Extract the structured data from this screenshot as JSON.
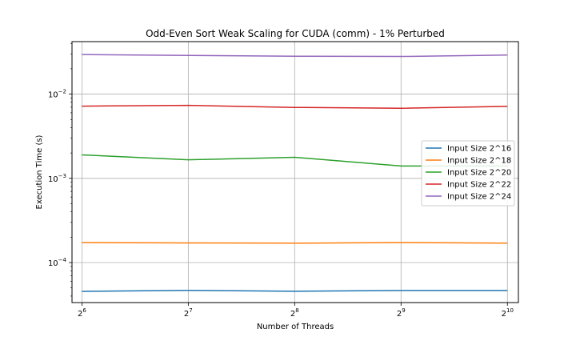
{
  "chart_data": {
    "type": "line",
    "title": "Odd-Even Sort Weak Scaling for CUDA (comm) - 1% Perturbed",
    "xlabel": "Number of Threads",
    "ylabel": "Execution Time (s)",
    "x_scale": "log2",
    "y_scale": "log10",
    "x": [
      64,
      128,
      256,
      512,
      1024
    ],
    "x_tick_labels": [
      {
        "base": "2",
        "exp": "6"
      },
      {
        "base": "2",
        "exp": "7"
      },
      {
        "base": "2",
        "exp": "8"
      },
      {
        "base": "2",
        "exp": "9"
      },
      {
        "base": "2",
        "exp": "10"
      }
    ],
    "y_tick_labels": [
      {
        "value": 0.0001,
        "base": "10",
        "exp": "−4"
      },
      {
        "value": 0.001,
        "base": "10",
        "exp": "−3"
      },
      {
        "value": 0.01,
        "base": "10",
        "exp": "−2"
      }
    ],
    "xlim": [
      60,
      1100
    ],
    "ylim": [
      3.35e-05,
      0.042
    ],
    "grid": true,
    "legend_position": "center-right",
    "series": [
      {
        "name": "Input Size 2^16",
        "color": "#1f77b4",
        "values": [
          4.55e-05,
          4.68e-05,
          4.56e-05,
          4.67e-05,
          4.67e-05
        ]
      },
      {
        "name": "Input Size 2^18",
        "color": "#ff7f0e",
        "values": [
          0.000173,
          0.000171,
          0.00017,
          0.000173,
          0.00017
        ]
      },
      {
        "name": "Input Size 2^20",
        "color": "#2ca02c",
        "values": [
          0.0019,
          0.00166,
          0.00178,
          0.0014,
          0.0014
        ]
      },
      {
        "name": "Input Size 2^22",
        "color": "#d62728",
        "values": [
          0.0072,
          0.00735,
          0.00695,
          0.0068,
          0.00715
        ]
      },
      {
        "name": "Input Size 2^24",
        "color": "#9467bd",
        "values": [
          0.0295,
          0.0288,
          0.0282,
          0.028,
          0.0291
        ]
      }
    ]
  }
}
